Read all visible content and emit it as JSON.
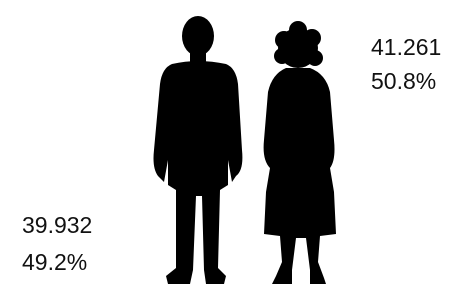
{
  "figures": [
    {
      "count": "39.932",
      "percent": "49.2%"
    },
    {
      "count": "41.261",
      "percent": "50.8%"
    }
  ]
}
